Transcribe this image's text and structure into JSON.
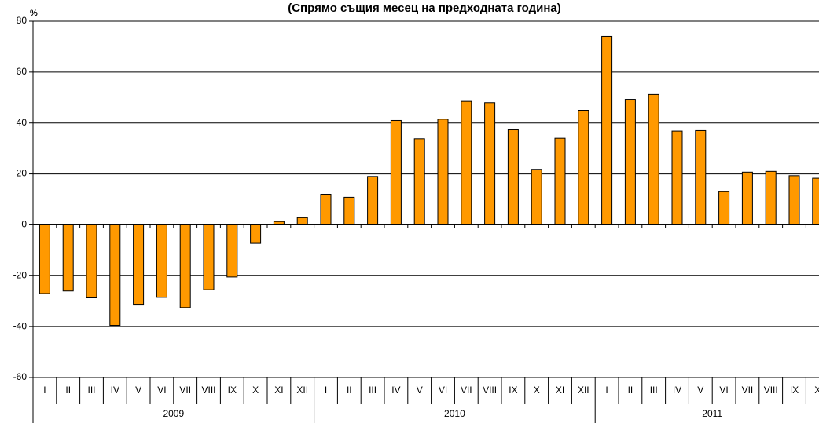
{
  "chart_data": {
    "type": "bar",
    "title": "(Спрямо същия месец на предходната година)",
    "y_label": "%",
    "categories": [
      "I",
      "II",
      "III",
      "IV",
      "V",
      "VI",
      "VII",
      "VIII",
      "IX",
      "X",
      "XI",
      "XII",
      "I",
      "II",
      "III",
      "IV",
      "V",
      "VI",
      "VII",
      "VIII",
      "IX",
      "X",
      "XI",
      "XII",
      "I",
      "II",
      "III",
      "IV",
      "V",
      "VI",
      "VII",
      "VIII",
      "IX",
      "X"
    ],
    "years": [
      "2009",
      "2010",
      "2011"
    ],
    "values": [
      -27,
      -26,
      -28.7,
      -39.5,
      -31.5,
      -28.5,
      -32.5,
      -25.5,
      -20.5,
      -7.3,
      1.3,
      2.8,
      12,
      10.8,
      19,
      41,
      33.8,
      41.5,
      48.5,
      48,
      37.3,
      21.8,
      34,
      45,
      74,
      49.3,
      51.2,
      36.8,
      37,
      13,
      20.7,
      21,
      19.3,
      18.3
    ],
    "color": "#ff9900",
    "ylim": [
      -60,
      80
    ],
    "yticks": [
      -60,
      -40,
      -20,
      0,
      20,
      40,
      60,
      80
    ],
    "grid": true
  }
}
